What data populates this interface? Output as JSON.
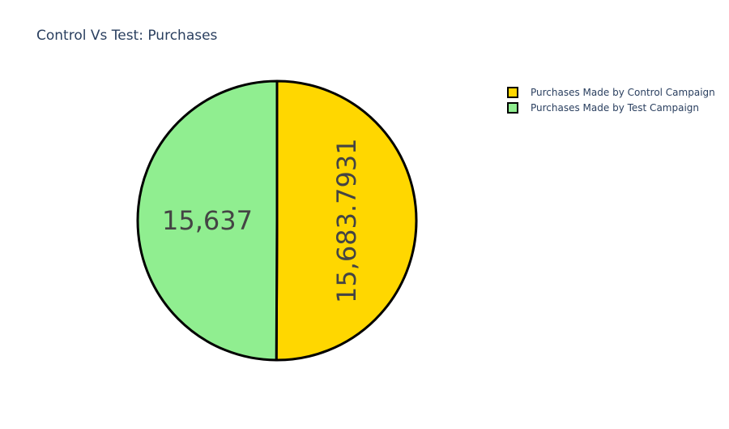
{
  "chart_data": {
    "type": "pie",
    "title": "Control Vs Test: Purchases",
    "labels": [
      "Purchases Made by Control Campaign",
      "Purchases Made by Test Campaign"
    ],
    "values": [
      15683.7931,
      15637
    ],
    "value_labels": [
      "15,683.7931",
      "15,637"
    ],
    "colors": [
      "#ffd700",
      "#90ee90"
    ],
    "slice_outline_color": "#000000",
    "legend_position": "top-right",
    "label_text_color": "#444444"
  }
}
